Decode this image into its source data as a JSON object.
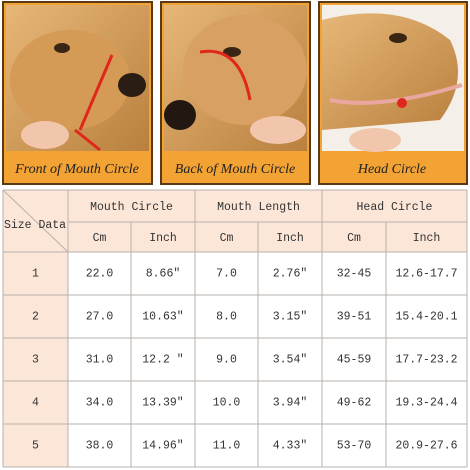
{
  "panels": [
    {
      "caption": "Front of Mouth Circle"
    },
    {
      "caption": "Back of Mouth Circle"
    },
    {
      "caption": "Head Circle"
    }
  ],
  "table": {
    "corner": "Size Data",
    "groups": [
      "Mouth Circle",
      "Mouth Length",
      "Head Circle"
    ],
    "units": [
      "Cm",
      "Inch",
      "Cm",
      "Inch",
      "Cm",
      "Inch"
    ],
    "rows": [
      [
        "1",
        "22.0",
        "8.66″",
        "7.0",
        "2.76″",
        "32-45",
        "12.6-17.7"
      ],
      [
        "2",
        "27.0",
        "10.63″",
        "8.0",
        "3.15″",
        "39-51",
        "15.4-20.1"
      ],
      [
        "3",
        "31.0",
        "12.2 ″",
        "9.0",
        "3.54″",
        "45-59",
        "17.7-23.2"
      ],
      [
        "4",
        "34.0",
        "13.39″",
        "10.0",
        "3.94″",
        "49-62",
        "19.3-24.4"
      ],
      [
        "5",
        "38.0",
        "14.96″",
        "11.0",
        "4.33″",
        "53-70",
        "20.9-27.6"
      ]
    ]
  }
}
